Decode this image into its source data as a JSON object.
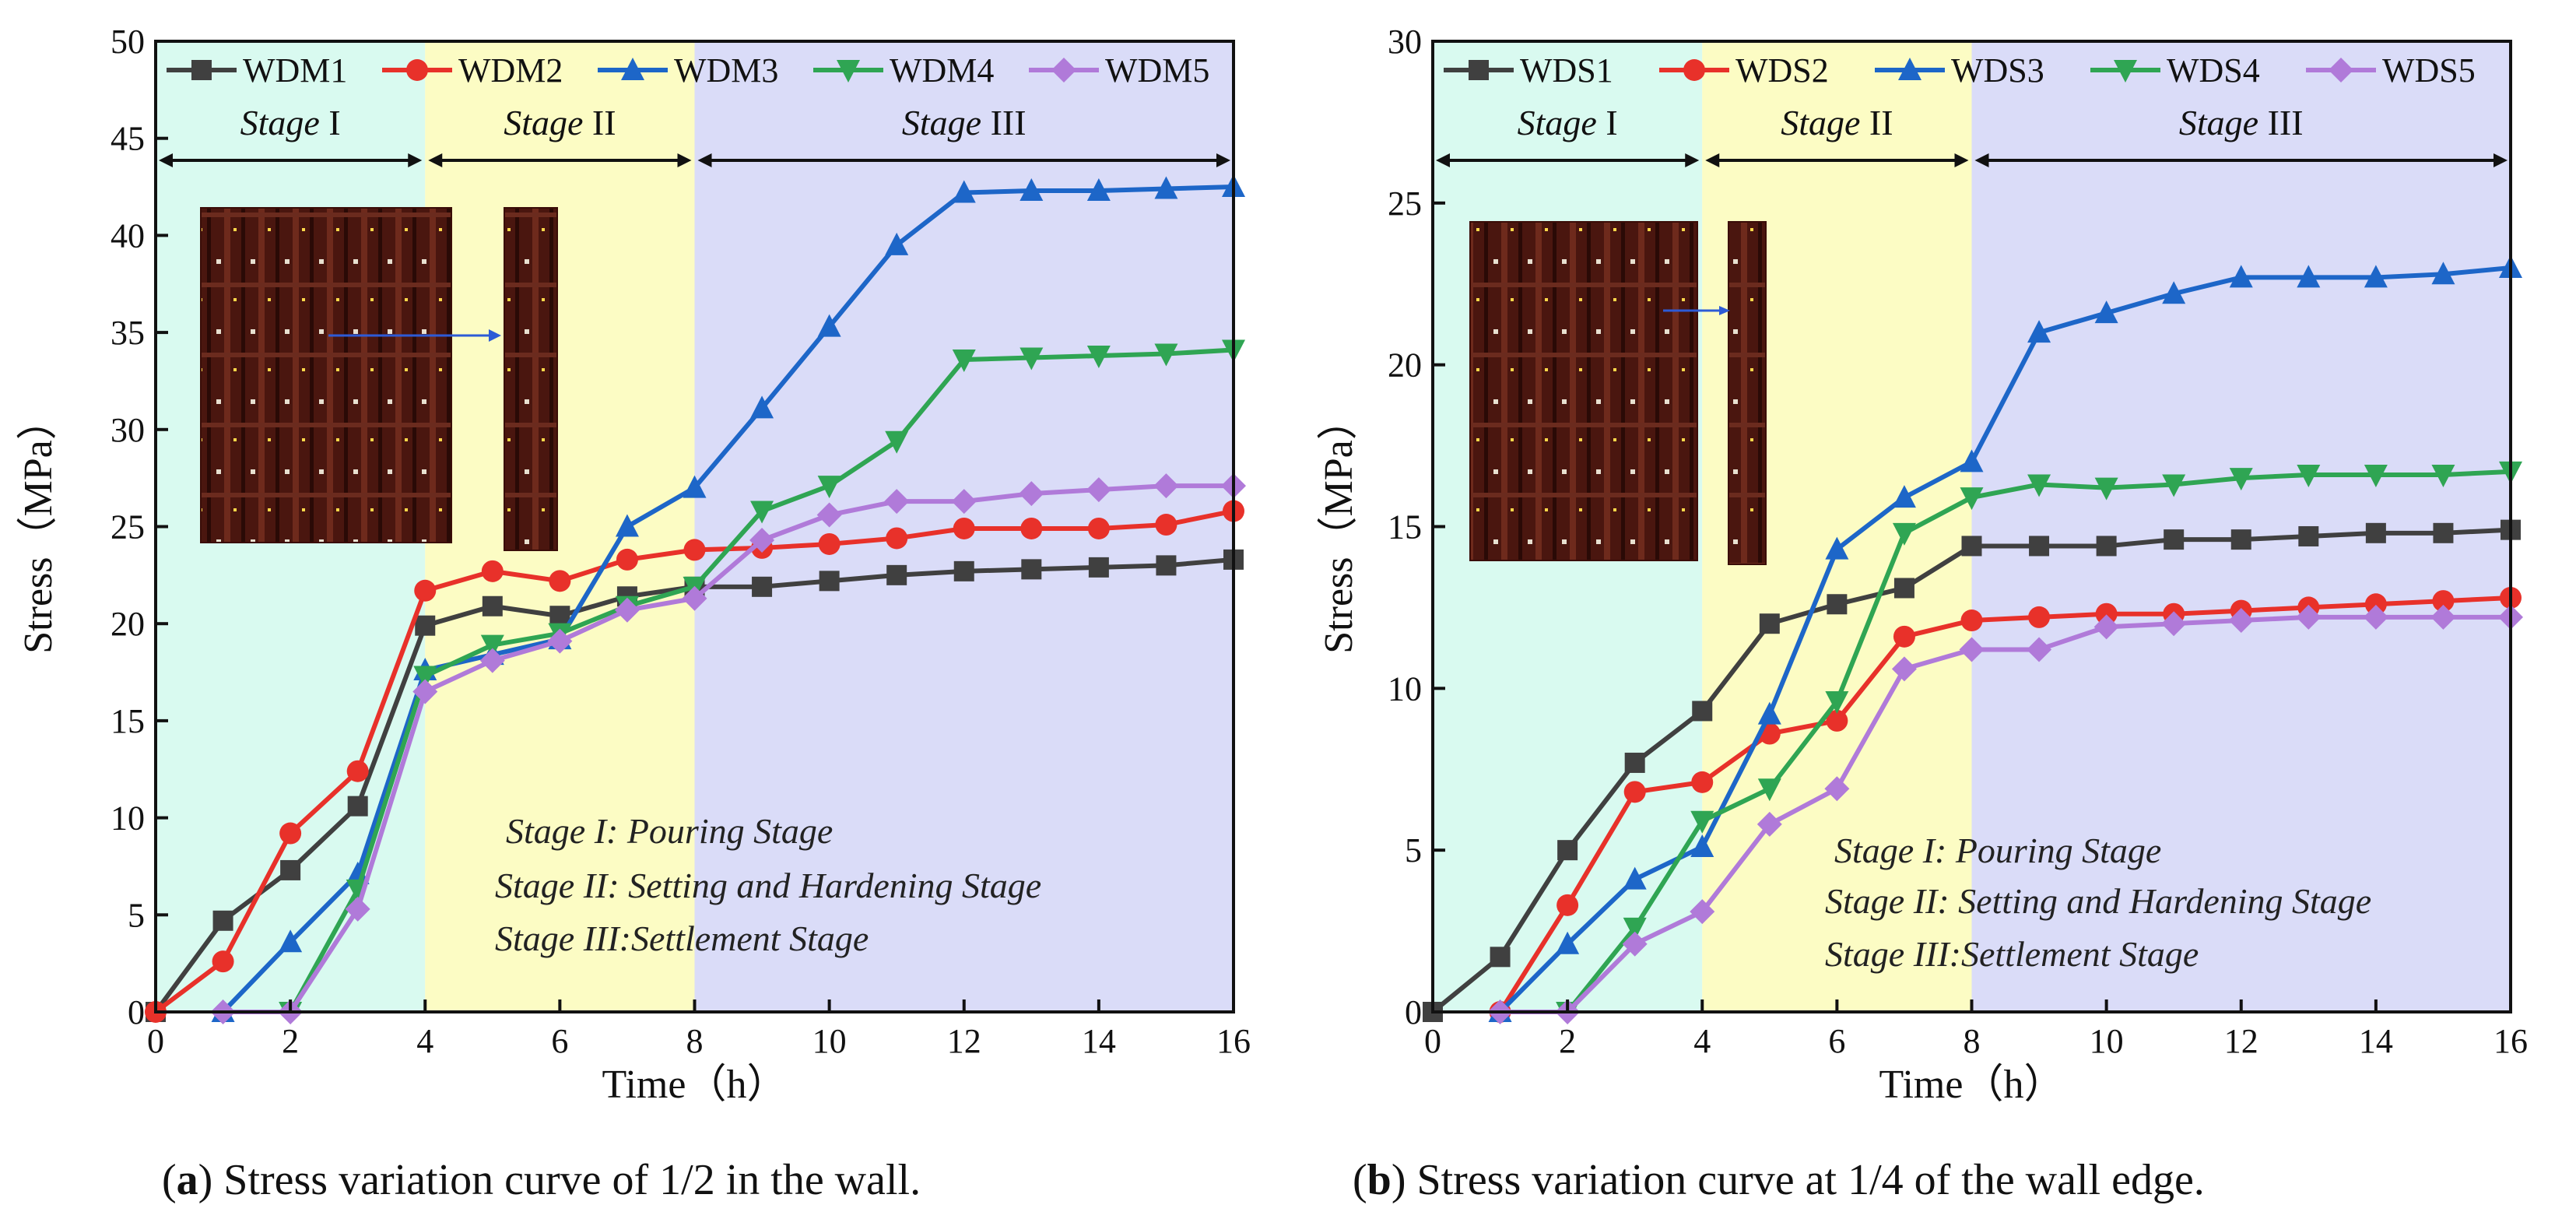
{
  "figure": {
    "panels": [
      {
        "id": "a",
        "caption_letter": "a",
        "caption_text": ") Stress variation curve of 1/2 in the wall.",
        "photo_description": "photo of formwork wall with embedded stress sensors",
        "stage_notes": [
          {
            "roman": "Stage I",
            "text": ": Pouring Stage"
          },
          {
            "roman": "Stage II",
            "text": ": Setting and Hardening Stage"
          },
          {
            "roman": "Stage III",
            "text": ":Settlement Stage"
          }
        ]
      },
      {
        "id": "b",
        "caption_letter": "b",
        "caption_text": ") Stress variation curve at 1/4 of the wall edge.",
        "photo_description": "photo of formwork wall with embedded stress sensors",
        "stage_notes": [
          {
            "roman": "Stage I",
            "text": ": Pouring Stage"
          },
          {
            "roman": "Stage II",
            "text": ": Setting and Hardening Stage"
          },
          {
            "roman": "Stage III",
            "text": ":Settlement Stage"
          }
        ]
      }
    ]
  },
  "colors": {
    "stage1": "#d9faf0",
    "stage2": "#fcfcc4",
    "stage3": "#dadcf8",
    "series": [
      "#404040",
      "#e8312a",
      "#1d66c8",
      "#2fa553",
      "#b07ad9"
    ]
  },
  "chart_data": [
    {
      "type": "line",
      "title": "",
      "xlabel": "Time（h）",
      "ylabel": "Stress（MPa）",
      "xlim": [
        0,
        16
      ],
      "ylim": [
        0,
        50
      ],
      "xticks": [
        0,
        2,
        4,
        6,
        8,
        10,
        12,
        14,
        16
      ],
      "yticks": [
        0,
        5,
        10,
        15,
        20,
        25,
        30,
        35,
        40,
        45,
        50
      ],
      "legend_position": "top",
      "stages": [
        {
          "label_it": "Stage",
          "label_roman": "I",
          "start": 0,
          "end": 4
        },
        {
          "label_it": "Stage",
          "label_roman": "II",
          "start": 4,
          "end": 8
        },
        {
          "label_it": "Stage",
          "label_roman": "III",
          "start": 8,
          "end": 16
        }
      ],
      "series": [
        {
          "name": "WDM1",
          "marker": "square",
          "x": [
            0,
            1,
            2,
            3,
            4,
            5,
            6,
            7,
            8,
            9,
            10,
            11,
            12,
            13,
            14,
            15,
            16
          ],
          "values": [
            0,
            4.7,
            7.3,
            10.6,
            19.9,
            20.9,
            20.4,
            21.4,
            21.9,
            21.9,
            22.2,
            22.5,
            22.7,
            22.8,
            22.9,
            23.0,
            23.3
          ]
        },
        {
          "name": "WDM2",
          "marker": "circle",
          "x": [
            0,
            1,
            2,
            3,
            4,
            5,
            6,
            7,
            8,
            9,
            10,
            11,
            12,
            13,
            14,
            15,
            16
          ],
          "values": [
            0,
            2.6,
            9.2,
            12.4,
            21.7,
            22.7,
            22.2,
            23.3,
            23.8,
            23.9,
            24.1,
            24.4,
            24.9,
            24.9,
            24.9,
            25.1,
            25.8
          ]
        },
        {
          "name": "WDM3",
          "marker": "triangle",
          "x": [
            1,
            2,
            3,
            4,
            5,
            6,
            7,
            8,
            9,
            10,
            11,
            12,
            13,
            14,
            15,
            16
          ],
          "values": [
            0,
            3.6,
            7.1,
            17.6,
            18.4,
            19.2,
            25.0,
            27.0,
            31.1,
            35.3,
            39.5,
            42.2,
            42.3,
            42.3,
            42.4,
            42.5
          ]
        },
        {
          "name": "WDM4",
          "marker": "triangle-down",
          "x": [
            2,
            3,
            4,
            5,
            6,
            7,
            8,
            9,
            10,
            11,
            12,
            13,
            14,
            15,
            16
          ],
          "values": [
            0,
            6.3,
            17.3,
            18.9,
            19.5,
            20.9,
            21.9,
            25.8,
            27.1,
            29.4,
            33.6,
            33.7,
            33.8,
            33.9,
            34.1
          ]
        },
        {
          "name": "WDM5",
          "marker": "diamond",
          "x": [
            1,
            2,
            3,
            4,
            5,
            6,
            7,
            8,
            9,
            10,
            11,
            12,
            13,
            14,
            15,
            16
          ],
          "values": [
            0,
            0,
            5.3,
            16.5,
            18.1,
            19.1,
            20.7,
            21.3,
            24.3,
            25.6,
            26.3,
            26.3,
            26.7,
            26.9,
            27.1,
            27.1
          ]
        }
      ]
    },
    {
      "type": "line",
      "title": "",
      "xlabel": "Time（h）",
      "ylabel": "Stress（MPa）",
      "xlim": [
        0,
        16
      ],
      "ylim": [
        0,
        30
      ],
      "xticks": [
        0,
        2,
        4,
        6,
        8,
        10,
        12,
        14,
        16
      ],
      "yticks": [
        0,
        5,
        10,
        15,
        20,
        25,
        30
      ],
      "legend_position": "top",
      "stages": [
        {
          "label_it": "Stage",
          "label_roman": "I",
          "start": 0,
          "end": 4
        },
        {
          "label_it": "Stage",
          "label_roman": "II",
          "start": 4,
          "end": 8
        },
        {
          "label_it": "Stage",
          "label_roman": "III",
          "start": 8,
          "end": 16
        }
      ],
      "series": [
        {
          "name": "WDS1",
          "marker": "square",
          "x": [
            0,
            1,
            2,
            3,
            4,
            5,
            6,
            7,
            8,
            9,
            10,
            11,
            12,
            13,
            14,
            15,
            16
          ],
          "values": [
            0,
            1.7,
            5.0,
            7.7,
            9.3,
            12.0,
            12.6,
            13.1,
            14.4,
            14.4,
            14.4,
            14.6,
            14.6,
            14.7,
            14.8,
            14.8,
            14.9
          ]
        },
        {
          "name": "WDS2",
          "marker": "circle",
          "x": [
            1,
            2,
            3,
            4,
            5,
            6,
            7,
            8,
            9,
            10,
            11,
            12,
            13,
            14,
            15,
            16
          ],
          "values": [
            0,
            3.3,
            6.8,
            7.1,
            8.6,
            9.0,
            11.6,
            12.1,
            12.2,
            12.3,
            12.3,
            12.4,
            12.5,
            12.6,
            12.7,
            12.8
          ]
        },
        {
          "name": "WDS3",
          "marker": "triangle",
          "x": [
            1,
            2,
            3,
            4,
            5,
            6,
            7,
            8,
            9,
            10,
            11,
            12,
            13,
            14,
            15,
            16
          ],
          "values": [
            0,
            2.1,
            4.1,
            5.1,
            9.2,
            14.3,
            15.9,
            17.0,
            21.0,
            21.6,
            22.2,
            22.7,
            22.7,
            22.7,
            22.8,
            23.0
          ]
        },
        {
          "name": "WDS4",
          "marker": "triangle-down",
          "x": [
            2,
            3,
            4,
            5,
            6,
            7,
            8,
            9,
            10,
            11,
            12,
            13,
            14,
            15,
            16
          ],
          "values": [
            0,
            2.6,
            5.9,
            6.9,
            9.6,
            14.8,
            15.9,
            16.3,
            16.2,
            16.3,
            16.5,
            16.6,
            16.6,
            16.6,
            16.7
          ]
        },
        {
          "name": "WDS5",
          "marker": "diamond",
          "x": [
            1,
            2,
            3,
            4,
            5,
            6,
            7,
            8,
            9,
            10,
            11,
            12,
            13,
            14,
            15,
            16
          ],
          "values": [
            0,
            0,
            2.1,
            3.1,
            5.8,
            6.9,
            10.6,
            11.2,
            11.2,
            11.9,
            12.0,
            12.1,
            12.2,
            12.2,
            12.2,
            12.2
          ]
        }
      ]
    }
  ]
}
